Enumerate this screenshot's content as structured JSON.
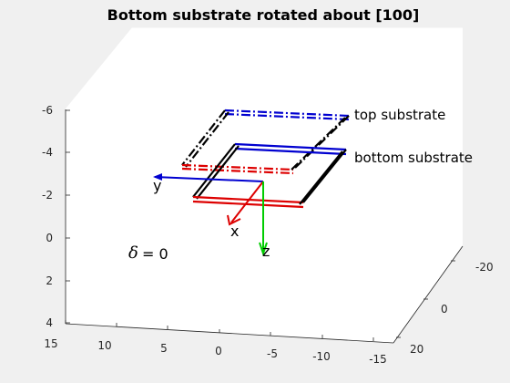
{
  "chart_data": {
    "type": "3d-wireframe",
    "title": "Bottom substrate rotated about [100]",
    "axes": {
      "x": {
        "ticks": [
          "15",
          "10",
          "5",
          "0",
          "-5",
          "-10",
          "-15"
        ],
        "range": [
          -15,
          15
        ]
      },
      "y": {
        "ticks": [
          "-20",
          "0",
          "20"
        ],
        "range": [
          -20,
          20
        ]
      },
      "z": {
        "ticks": [
          "-6",
          "-4",
          "-2",
          "0",
          "2",
          "4"
        ],
        "range": [
          -6,
          4
        ],
        "reversed": true
      }
    },
    "annotations": {
      "top_substrate": "top substrate",
      "bottom_substrate": "bottom substrate",
      "delta_symbol": "δ",
      "delta_value": "= 0",
      "axis_x": "x",
      "axis_y": "y",
      "axis_z": "z"
    },
    "series": [
      {
        "name": "top substrate",
        "color": "#0000cc",
        "style": "dash-dot",
        "z": -5
      },
      {
        "name": "bottom substrate",
        "color": "#0000cc",
        "style": "solid",
        "z": -3
      }
    ],
    "colors": {
      "blue": "#0000d0",
      "red": "#dd0000",
      "black": "#000000",
      "green": "#00cc00"
    },
    "grid": false
  }
}
